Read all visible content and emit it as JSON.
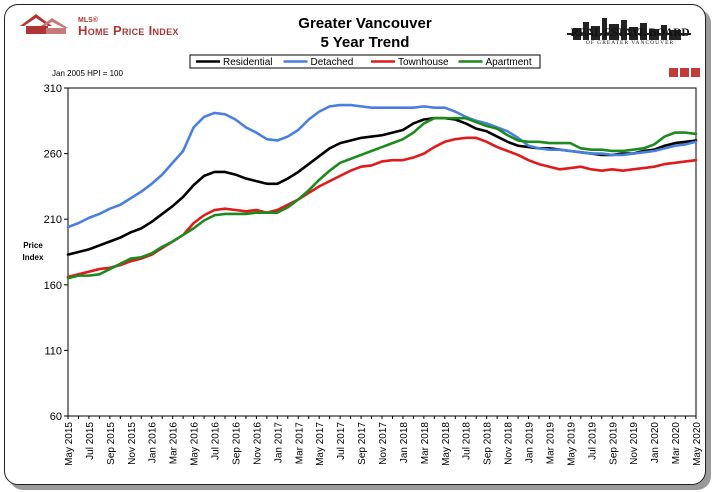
{
  "header": {
    "logo_mls": "MLS®",
    "logo_hpi": "Home Price Index",
    "title_line1": "Greater Vancouver",
    "title_line2": "5 Year Trend",
    "board_name": "REAL ESTATE BOARD",
    "board_sub": "OF GREATER VANCOUVER"
  },
  "colors": {
    "residential": "#000000",
    "detached": "#4a7fe0",
    "townhouse": "#e01b1b",
    "apartment": "#1d8a1d",
    "logo": "#b03434"
  },
  "chart_data": {
    "type": "line",
    "title": "Greater Vancouver 5 Year Trend",
    "note": "Jan 2005 HPI = 100",
    "ylabel": "Price Index",
    "xlabel": "",
    "ylim": [
      60,
      310
    ],
    "yticks": [
      60,
      110,
      160,
      210,
      260,
      310
    ],
    "grid": false,
    "legend_position": "top",
    "x": [
      "May 2015",
      "Jun 2015",
      "Jul 2015",
      "Aug 2015",
      "Sep 2015",
      "Oct 2015",
      "Nov 2015",
      "Dec 2015",
      "Jan 2016",
      "Feb 2016",
      "Mar 2016",
      "Apr 2016",
      "May 2016",
      "Jun 2016",
      "Jul 2016",
      "Aug 2016",
      "Sep 2016",
      "Oct 2016",
      "Nov 2016",
      "Dec 2016",
      "Jan 2017",
      "Feb 2017",
      "Mar 2017",
      "Apr 2017",
      "May 2017",
      "Jun 2017",
      "Jul 2017",
      "Aug 2017",
      "Sep 2017",
      "Oct 2017",
      "Nov 2017",
      "Dec 2017",
      "Jan 2018",
      "Feb 2018",
      "Mar 2018",
      "Apr 2018",
      "May 2018",
      "Jun 2018",
      "Jul 2018",
      "Aug 2018",
      "Sep 2018",
      "Oct 2018",
      "Nov 2018",
      "Dec 2018",
      "Jan 2019",
      "Feb 2019",
      "Mar 2019",
      "Apr 2019",
      "May 2019",
      "Jun 2019",
      "Jul 2019",
      "Aug 2019",
      "Sep 2019",
      "Oct 2019",
      "Nov 2019",
      "Dec 2019",
      "Jan 2020",
      "Feb 2020",
      "Mar 2020",
      "Apr 2020",
      "May 2020"
    ],
    "xtick_labels": [
      "May 2015",
      "Jul 2015",
      "Sep 2015",
      "Nov 2015",
      "Jan 2016",
      "Mar 2016",
      "May 2016",
      "Jul 2016",
      "Sep 2016",
      "Nov 2016",
      "Jan 2017",
      "Mar 2017",
      "May 2017",
      "Jul 2017",
      "Sep 2017",
      "Nov 2017",
      "Jan 2018",
      "Mar 2018",
      "May 2018",
      "Jul 2018",
      "Sep 2018",
      "Nov 2018",
      "Jan 2019",
      "Mar 2019",
      "May 2019",
      "Jul 2019",
      "Sep 2019",
      "Nov 2019",
      "Jan 2020",
      "Mar 2020",
      "May 2020"
    ],
    "series": [
      {
        "name": "Residential",
        "color_key": "residential",
        "values": [
          183,
          185,
          187,
          190,
          193,
          196,
          200,
          203,
          208,
          214,
          220,
          227,
          236,
          243,
          246,
          246,
          244,
          241,
          239,
          237,
          237,
          241,
          246,
          252,
          258,
          264,
          268,
          270,
          272,
          273,
          274,
          276,
          278,
          283,
          286,
          287,
          287,
          286,
          283,
          279,
          277,
          273,
          269,
          266,
          265,
          264,
          264,
          263,
          262,
          261,
          260,
          259,
          259,
          260,
          260,
          262,
          263,
          266,
          268,
          269,
          270
        ]
      },
      {
        "name": "Detached",
        "color_key": "detached",
        "values": [
          204,
          207,
          211,
          214,
          218,
          221,
          226,
          231,
          237,
          244,
          253,
          262,
          280,
          288,
          291,
          290,
          286,
          280,
          276,
          271,
          270,
          273,
          278,
          286,
          292,
          296,
          297,
          297,
          296,
          295,
          295,
          295,
          295,
          295,
          296,
          295,
          295,
          292,
          288,
          285,
          283,
          280,
          277,
          272,
          266,
          264,
          263,
          263,
          262,
          261,
          260,
          260,
          259,
          259,
          260,
          261,
          262,
          264,
          266,
          267,
          269
        ]
      },
      {
        "name": "Townhouse",
        "color_key": "townhouse",
        "values": [
          166,
          168,
          170,
          172,
          173,
          175,
          178,
          180,
          183,
          188,
          193,
          198,
          207,
          213,
          217,
          218,
          217,
          216,
          217,
          215,
          217,
          221,
          225,
          230,
          235,
          239,
          243,
          247,
          250,
          251,
          254,
          255,
          255,
          257,
          260,
          265,
          269,
          271,
          272,
          272,
          269,
          265,
          262,
          259,
          255,
          252,
          250,
          248,
          249,
          250,
          248,
          247,
          248,
          247,
          248,
          249,
          250,
          252,
          253,
          254,
          255
        ]
      },
      {
        "name": "Apartment",
        "color_key": "apartment",
        "values": [
          165,
          167,
          167,
          168,
          172,
          176,
          180,
          181,
          184,
          189,
          193,
          198,
          203,
          209,
          213,
          214,
          214,
          214,
          215,
          215,
          215,
          219,
          225,
          232,
          240,
          247,
          253,
          256,
          259,
          262,
          265,
          268,
          271,
          276,
          283,
          287,
          287,
          287,
          287,
          284,
          281,
          279,
          274,
          270,
          269,
          269,
          268,
          268,
          268,
          264,
          263,
          263,
          262,
          262,
          263,
          264,
          267,
          273,
          276,
          276,
          275
        ]
      }
    ]
  }
}
